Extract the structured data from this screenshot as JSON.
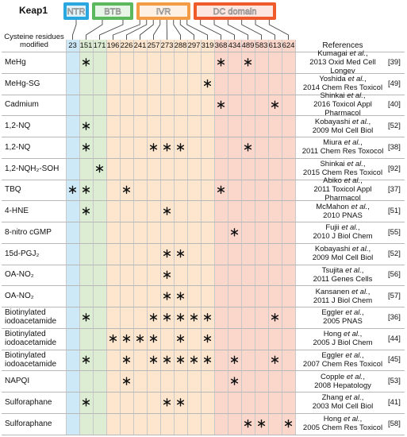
{
  "header": {
    "protein": "Keap1",
    "residues_label": "Cysteine residues modified",
    "references_label": "References"
  },
  "domains": [
    {
      "name": "NTR",
      "color": "#2aa7df",
      "shade": "#cde9f7",
      "residues": [
        23
      ]
    },
    {
      "name": "BTB",
      "color": "#5cb85c",
      "shade": "#dcedd3",
      "residues": [
        151,
        171
      ]
    },
    {
      "name": "IVR",
      "color": "#f39c45",
      "shade": "#fde6cd",
      "residues": [
        196,
        226,
        241,
        257,
        273,
        288,
        297,
        319
      ]
    },
    {
      "name": "DC domain",
      "color": "#ef5a2a",
      "shade": "#fad6cb",
      "residues": [
        368,
        434,
        489,
        583,
        613,
        624
      ]
    }
  ],
  "rows": [
    {
      "compound": "MeHg",
      "sites": [
        151,
        368,
        489
      ],
      "reference": [
        "Kumagai et al.,",
        "2013 Oxid Med Cell Longev"
      ],
      "citation": "[39]"
    },
    {
      "compound": "MeHg-SG",
      "sites": [
        319
      ],
      "reference": [
        "Yoshida et al.,",
        "2014 Chem Res Toxicol"
      ],
      "citation": "[49]"
    },
    {
      "compound": "Cadmium",
      "sites": [
        368,
        613
      ],
      "reference": [
        "Shinkai et al.,",
        "2016 Toxicol Appl Pharmacol"
      ],
      "citation": "[40]"
    },
    {
      "compound": "1,2-NQ",
      "sites": [
        151
      ],
      "reference": [
        "Kobayashi et al.,",
        "2009 Mol Cell Biol"
      ],
      "citation": "[52]"
    },
    {
      "compound": "1,2-NQ",
      "sites": [
        151,
        257,
        273,
        288,
        489
      ],
      "reference": [
        "Miura et al.,",
        "2011 Chem Res Toxocol"
      ],
      "citation": "[38]"
    },
    {
      "compound": "1,2-NQH₂-SOH",
      "sites": [
        171
      ],
      "reference": [
        "Shinkai et al.,",
        "2015 Chem Res Toxicol"
      ],
      "citation": "[92]"
    },
    {
      "compound": "TBQ",
      "sites": [
        23,
        151,
        226,
        368
      ],
      "reference": [
        "Abiko et al.,",
        "2011 Toxicol Appl Pharmacol"
      ],
      "citation": "[37]"
    },
    {
      "compound": "4-HNE",
      "sites": [
        151,
        273
      ],
      "reference": [
        "McMahon et al.,",
        "2010 PNAS"
      ],
      "citation": "[51]"
    },
    {
      "compound": "8-nitro cGMP",
      "sites": [
        434
      ],
      "reference": [
        "Fujii et al.,",
        "2010 J Biol Chem"
      ],
      "citation": "[55]"
    },
    {
      "compound": "15d-PGJ₂",
      "sites": [
        273,
        288
      ],
      "reference": [
        "Kobayashi et al.,",
        "2009 Mol Cell Biol"
      ],
      "citation": "[52]"
    },
    {
      "compound": "OA-NO₂",
      "sites": [
        273
      ],
      "reference": [
        "Tsujita et al.,",
        "2011 Genes Cells"
      ],
      "citation": "[56]"
    },
    {
      "compound": "OA-NO₂",
      "sites": [
        273,
        288
      ],
      "reference": [
        "Kansanen et al.,",
        "2011 J Biol Chem"
      ],
      "citation": "[57]"
    },
    {
      "compound": "Biotinylated iodoacetamide",
      "sites": [
        151,
        257,
        273,
        288,
        297,
        319,
        613
      ],
      "reference": [
        "Eggler et al.,",
        "2005 PNAS"
      ],
      "citation": "[36]"
    },
    {
      "compound": "Biotinylated iodoacetamide",
      "sites": [
        196,
        226,
        241,
        257,
        288,
        319
      ],
      "reference": [
        "Hong et al.,",
        "2005 J Biol Chem"
      ],
      "citation": "[44]"
    },
    {
      "compound": "Biotinylated iodoacetamide",
      "sites": [
        151,
        226,
        257,
        273,
        288,
        297,
        319,
        434,
        613
      ],
      "reference": [
        "Eggler et al.,",
        "2007 Chem Res Toxicol"
      ],
      "citation": "[45]"
    },
    {
      "compound": "NAPQI",
      "sites": [
        226,
        434
      ],
      "reference": [
        "Copple et al.,",
        "2008 Hepatology"
      ],
      "citation": "[53]"
    },
    {
      "compound": "Sulforaphane",
      "sites": [
        151,
        273,
        288
      ],
      "reference": [
        "Zhang et al.,",
        "2003 Mol Cell Biol"
      ],
      "citation": "[41]"
    },
    {
      "compound": "Sulforaphane",
      "sites": [
        489,
        583,
        624
      ],
      "reference": [
        "Hong et al.,",
        "2005 Chem Res Toxicol"
      ],
      "citation": "[58]"
    }
  ]
}
